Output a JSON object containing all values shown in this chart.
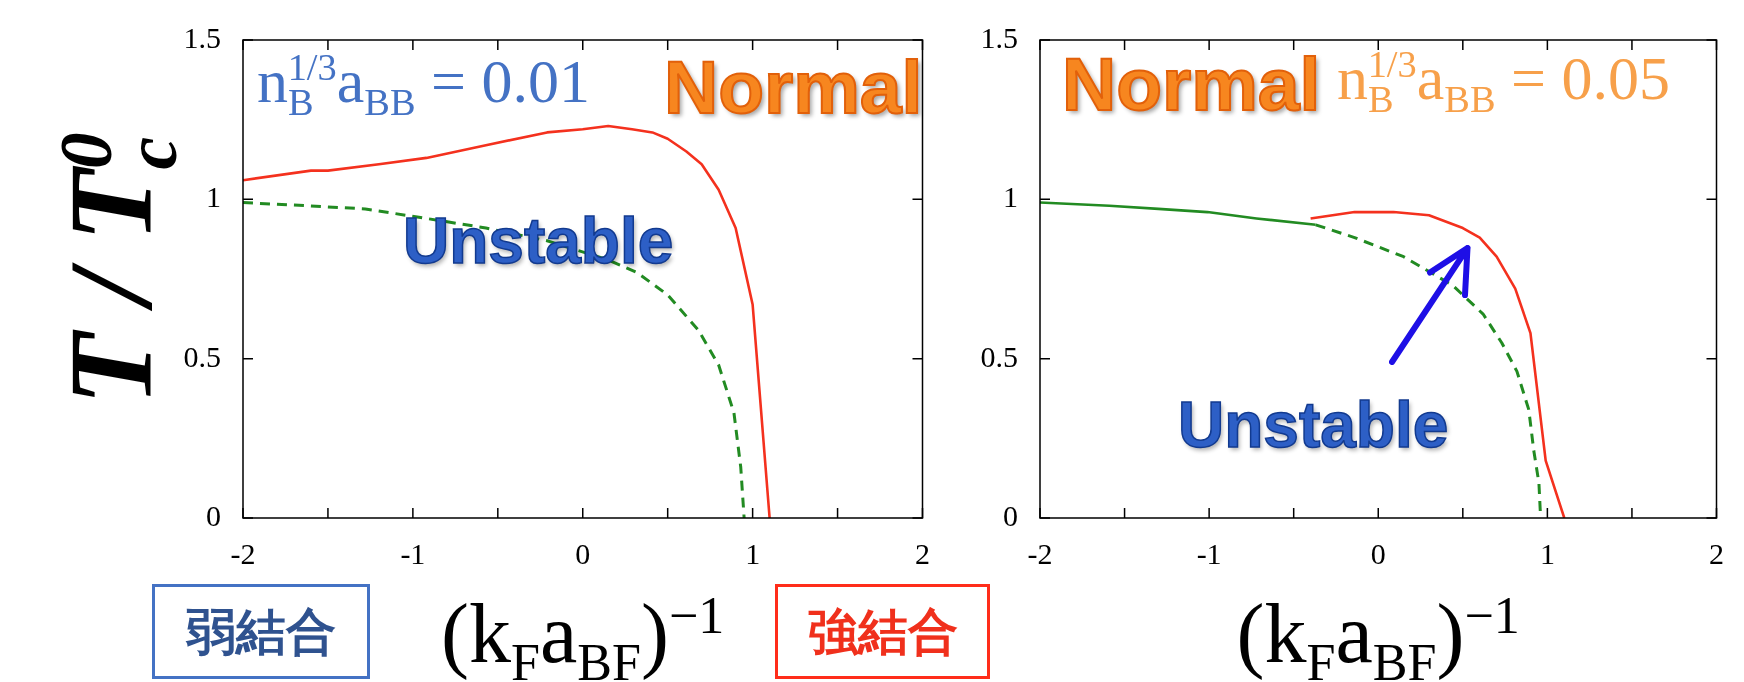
{
  "chart_data": [
    {
      "type": "line",
      "xlabel": "(k$_{F}$a$_{BF}$)$^{−1}$",
      "ylabel": "T / T$_{c}$$^{0}$",
      "xlim": [
        -2,
        2
      ],
      "xticks": [
        -2,
        {
          "value": -1.5,
          "label": null
        },
        -1,
        {
          "value": -0.5,
          "label": null
        },
        0,
        {
          "value": 0.5,
          "label": null
        },
        1,
        {
          "value": 1.5,
          "label": null
        },
        2
      ],
      "ylim": [
        0,
        1.5
      ],
      "yticks": [
        0,
        0.5,
        1,
        1.5
      ],
      "annotations": [
        "n$_{B}$$^{1/3}$a$_{BB}$ = 0.01",
        "Normal",
        "Unstable",
        "弱結合",
        "強結合"
      ],
      "series": [
        {
          "color": "#f4311e",
          "line_style": "solid",
          "x": [
            -2,
            -1.6,
            -1.5,
            -1.2,
            -0.92,
            -0.57,
            -0.21,
            0,
            0.15,
            0.29,
            0.41,
            0.5,
            0.61,
            0.7,
            0.8,
            0.9,
            1.0,
            1.1
          ],
          "values": [
            1.06,
            1.09,
            1.09,
            1.11,
            1.13,
            1.17,
            1.21,
            1.22,
            1.23,
            1.22,
            1.21,
            1.19,
            1.15,
            1.11,
            1.03,
            0.91,
            0.67,
            0
          ]
        },
        {
          "color": "#228b22",
          "line_style": "dashed",
          "x": [
            -2,
            -1.63,
            -1.28,
            -0.92,
            -0.57,
            -0.21,
            0.15,
            0.32,
            0.5,
            0.68,
            0.8,
            0.89,
            0.93,
            0.95
          ],
          "values": [
            0.99,
            0.98,
            0.97,
            0.94,
            0.91,
            0.87,
            0.81,
            0.77,
            0.7,
            0.59,
            0.48,
            0.33,
            0.16,
            0
          ]
        }
      ]
    },
    {
      "type": "line",
      "xlabel": "(k$_{F}$a$_{BF}$)$^{−1}$",
      "xlim": [
        -2,
        2
      ],
      "xticks": [
        -2,
        {
          "value": -1.5,
          "label": null
        },
        -1,
        {
          "value": -0.5,
          "label": null
        },
        0,
        {
          "value": 0.5,
          "label": null
        },
        1,
        {
          "value": 1.5,
          "label": null
        },
        2
      ],
      "ylim": [
        0,
        1.5
      ],
      "yticks": [
        0,
        0.5,
        1,
        1.5
      ],
      "annotations": [
        "Normal",
        "n$_{B}$$^{1/3}$a$_{BB}$ = 0.05",
        "Unstable"
      ],
      "series": [
        {
          "color": "#228b22",
          "line_style": "solid",
          "x": [
            -2,
            -1.59,
            -1.3,
            -1.01,
            -0.72,
            -0.37
          ],
          "values": [
            0.99,
            0.98,
            0.97,
            0.96,
            0.94,
            0.92
          ]
        },
        {
          "color": "#228b22",
          "line_style": "dashed",
          "x": [
            -0.37,
            -0.14,
            0.15,
            0.44,
            0.62,
            0.73,
            0.82,
            0.89,
            0.92,
            0.95,
            0.96
          ],
          "values": [
            0.92,
            0.88,
            0.82,
            0.73,
            0.64,
            0.55,
            0.46,
            0.34,
            0.21,
            0.11,
            0
          ]
        },
        {
          "color": "#f4311e",
          "line_style": "solid",
          "x": [
            -0.4,
            -0.14,
            0.09,
            0.3,
            0.5,
            0.6,
            0.7,
            0.81,
            0.9,
            0.99,
            1.1
          ],
          "values": [
            0.94,
            0.96,
            0.96,
            0.95,
            0.91,
            0.88,
            0.82,
            0.72,
            0.58,
            0.18,
            0
          ]
        }
      ]
    }
  ]
}
